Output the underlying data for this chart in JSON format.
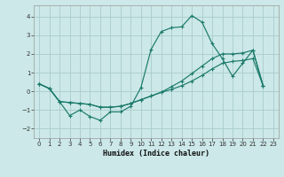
{
  "xlabel": "Humidex (Indice chaleur)",
  "background_color": "#cce8e8",
  "grid_color": "#aacccc",
  "line_color": "#1a7a6a",
  "xlim": [
    -0.5,
    23.5
  ],
  "ylim": [
    -2.5,
    4.6
  ],
  "xticks": [
    0,
    1,
    2,
    3,
    4,
    5,
    6,
    7,
    8,
    9,
    10,
    11,
    12,
    13,
    14,
    15,
    16,
    17,
    18,
    19,
    20,
    21,
    22,
    23
  ],
  "yticks": [
    -2,
    -1,
    0,
    1,
    2,
    3,
    4
  ],
  "series1_x": [
    0,
    1,
    2,
    3,
    4,
    5,
    6,
    7,
    8,
    9,
    10,
    11,
    12,
    13,
    14,
    15,
    16,
    17,
    18,
    19,
    20,
    21,
    22
  ],
  "series1_y": [
    0.4,
    0.15,
    -0.55,
    -1.3,
    -1.0,
    -1.35,
    -1.55,
    -1.1,
    -1.1,
    -0.8,
    0.2,
    2.25,
    3.2,
    3.4,
    3.45,
    4.05,
    3.7,
    2.55,
    1.75,
    0.8,
    1.5,
    2.2,
    0.3
  ],
  "series2_x": [
    0,
    1,
    2,
    3,
    4,
    5,
    6,
    7,
    8,
    9,
    10,
    11,
    12,
    13,
    14,
    15,
    16,
    17,
    18,
    19,
    20,
    21,
    22
  ],
  "series2_y": [
    0.4,
    0.15,
    -0.55,
    -0.6,
    -0.65,
    -0.7,
    -0.85,
    -0.85,
    -0.8,
    -0.65,
    -0.45,
    -0.25,
    -0.05,
    0.25,
    0.55,
    0.95,
    1.35,
    1.75,
    2.0,
    2.0,
    2.05,
    2.2,
    0.3
  ],
  "series3_x": [
    0,
    1,
    2,
    3,
    4,
    5,
    6,
    7,
    8,
    9,
    10,
    11,
    12,
    13,
    14,
    15,
    16,
    17,
    18,
    19,
    20,
    21,
    22
  ],
  "series3_y": [
    0.4,
    0.15,
    -0.55,
    -0.6,
    -0.65,
    -0.7,
    -0.85,
    -0.85,
    -0.8,
    -0.65,
    -0.45,
    -0.25,
    -0.05,
    0.1,
    0.3,
    0.55,
    0.85,
    1.2,
    1.5,
    1.6,
    1.65,
    1.75,
    0.3
  ]
}
